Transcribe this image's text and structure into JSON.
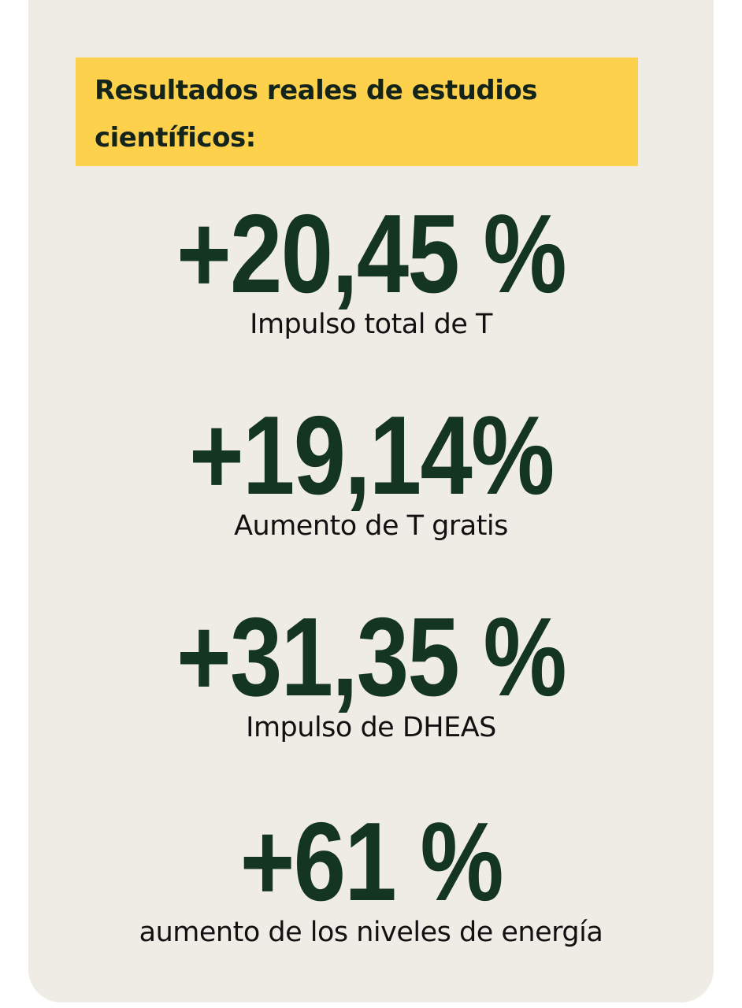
{
  "heading": "Resultados reales de estudios científicos:",
  "colors": {
    "card_bg": "#efece6",
    "banner_bg": "#fdd14b",
    "number": "#14351f"
  },
  "stats": [
    {
      "value": "+20,45 %",
      "label": "Impulso total de T"
    },
    {
      "value": "+19,14%",
      "label": "Aumento de T gratis"
    },
    {
      "value": "+31,35 %",
      "label": "Impulso de DHEAS"
    },
    {
      "value": "+61 %",
      "label": "aumento de los niveles de energía"
    }
  ]
}
